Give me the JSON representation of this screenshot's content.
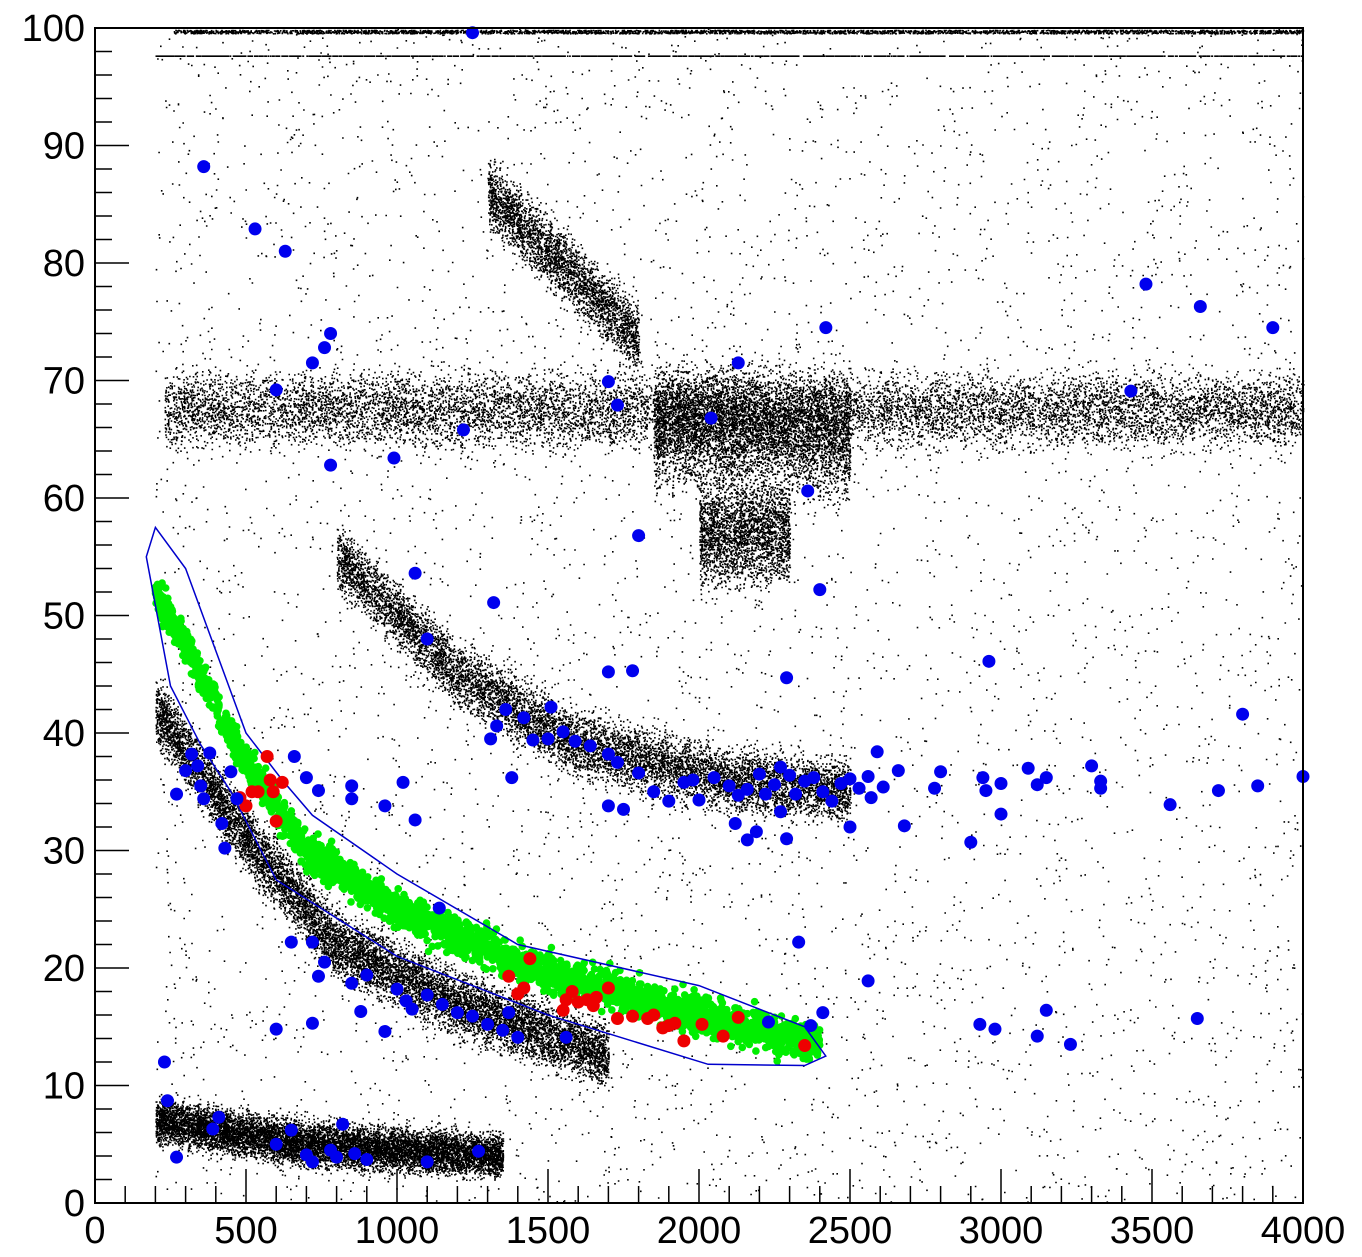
{
  "chart_data": {
    "type": "scatter",
    "title": "",
    "xlabel": "",
    "ylabel": "",
    "xlim": [
      0,
      4000
    ],
    "ylim": [
      0,
      100
    ],
    "x_ticks": [
      "0",
      "500",
      "1000",
      "1500",
      "2000",
      "2500",
      "3000",
      "3500",
      "4000"
    ],
    "y_ticks": [
      "0",
      "10",
      "20",
      "30",
      "40",
      "50",
      "60",
      "70",
      "80",
      "90",
      "100"
    ],
    "grid": false,
    "legend": "none",
    "cut_polygon": {
      "color": "#0000cc",
      "points": [
        [
          170,
          55
        ],
        [
          200,
          57.5
        ],
        [
          300,
          54
        ],
        [
          400,
          47
        ],
        [
          500,
          40
        ],
        [
          620,
          36
        ],
        [
          720,
          33
        ],
        [
          1000,
          28
        ],
        [
          1400,
          22
        ],
        [
          2000,
          18.5
        ],
        [
          2350,
          15
        ],
        [
          2420,
          12.5
        ],
        [
          2350,
          11.7
        ],
        [
          2030,
          11.8
        ],
        [
          1500,
          16
        ],
        [
          1000,
          21
        ],
        [
          600,
          27.5
        ],
        [
          450,
          35
        ],
        [
          350,
          39
        ],
        [
          250,
          44
        ],
        [
          170,
          55
        ]
      ]
    },
    "background_bands": [
      {
        "name": "horizontal band",
        "color": "#000000",
        "x_range": [
          230,
          4000
        ],
        "y_center": 67.5,
        "y_spread": 2.2
      },
      {
        "name": "lower curve",
        "color": "#000000",
        "x_range": [
          200,
          1700
        ],
        "y_at_x": [
          [
            200,
            42
          ],
          [
            500,
            31
          ],
          [
            800,
            22
          ],
          [
            1200,
            17
          ],
          [
            1700,
            12.5
          ]
        ]
      },
      {
        "name": "bottom band",
        "color": "#000000",
        "x_range": [
          200,
          1350
        ],
        "y_at_x": [
          [
            200,
            7
          ],
          [
            700,
            5
          ],
          [
            1350,
            4
          ]
        ]
      },
      {
        "name": "middle curve",
        "color": "#000000",
        "x_range": [
          800,
          2500
        ],
        "y_at_x": [
          [
            800,
            55
          ],
          [
            1200,
            45
          ],
          [
            1600,
            39
          ],
          [
            2100,
            36
          ],
          [
            2500,
            35
          ]
        ]
      },
      {
        "name": "blob",
        "color": "#000000",
        "x_range": [
          1900,
          2400
        ],
        "y_center": 66
      }
    ],
    "green_points": {
      "color": "#00ee00",
      "curve": [
        [
          200,
          52
        ],
        [
          350,
          45
        ],
        [
          500,
          37.5
        ],
        [
          700,
          30
        ],
        [
          1000,
          25
        ],
        [
          1400,
          20.5
        ],
        [
          2000,
          16
        ],
        [
          2400,
          13.5
        ]
      ]
    },
    "red_points": {
      "color": "#ee0000",
      "values": [
        [
          480,
          34.5
        ],
        [
          500,
          33.8
        ],
        [
          520,
          35
        ],
        [
          540,
          35
        ],
        [
          570,
          38
        ],
        [
          580,
          36
        ],
        [
          590,
          35
        ],
        [
          600,
          32.5
        ],
        [
          620,
          35.8
        ],
        [
          1370,
          19.3
        ],
        [
          1400,
          17.8
        ],
        [
          1420,
          18.3
        ],
        [
          1440,
          20.8
        ],
        [
          1550,
          16.4
        ],
        [
          1560,
          17.3
        ],
        [
          1580,
          18
        ],
        [
          1600,
          17.1
        ],
        [
          1630,
          17.3
        ],
        [
          1650,
          16.8
        ],
        [
          1660,
          17.5
        ],
        [
          1700,
          18.3
        ],
        [
          1730,
          15.7
        ],
        [
          1780,
          15.9
        ],
        [
          1830,
          15.7
        ],
        [
          1850,
          16
        ],
        [
          1880,
          14.9
        ],
        [
          1900,
          15.1
        ],
        [
          1920,
          15.3
        ],
        [
          1950,
          13.8
        ],
        [
          2010,
          15.2
        ],
        [
          2080,
          14.2
        ],
        [
          2130,
          15.8
        ],
        [
          2350,
          13.4
        ]
      ]
    },
    "blue_points": {
      "color": "#0000ee",
      "values": [
        [
          360,
          88.2
        ],
        [
          530,
          82.9
        ],
        [
          630,
          81
        ],
        [
          780,
          74
        ],
        [
          760,
          72.8
        ],
        [
          720,
          71.5
        ],
        [
          600,
          69.2
        ],
        [
          1220,
          65.8
        ],
        [
          990,
          63.4
        ],
        [
          780,
          62.8
        ],
        [
          1250,
          99.6
        ],
        [
          1700,
          69.9
        ],
        [
          1730,
          67.9
        ],
        [
          2130,
          71.5
        ],
        [
          2040,
          66.8
        ],
        [
          2420,
          74.5
        ],
        [
          2360,
          60.6
        ],
        [
          1800,
          56.8
        ],
        [
          2400,
          52.2
        ],
        [
          1060,
          53.6
        ],
        [
          1100,
          48
        ],
        [
          1320,
          51.1
        ],
        [
          1700,
          45.2
        ],
        [
          1780,
          45.3
        ],
        [
          2290,
          44.7
        ],
        [
          2960,
          46.1
        ],
        [
          3480,
          78.2
        ],
        [
          3660,
          76.3
        ],
        [
          3900,
          74.5
        ],
        [
          3430,
          69.1
        ],
        [
          3800,
          41.6
        ],
        [
          4000,
          36.3
        ],
        [
          230,
          12
        ],
        [
          240,
          8.7
        ],
        [
          270,
          3.9
        ],
        [
          390,
          6.3
        ],
        [
          410,
          7.3
        ],
        [
          600,
          5
        ],
        [
          650,
          6.2
        ],
        [
          700,
          4.1
        ],
        [
          720,
          3.5
        ],
        [
          780,
          4.5
        ],
        [
          800,
          3.9
        ],
        [
          820,
          6.7
        ],
        [
          860,
          4.2
        ],
        [
          900,
          3.7
        ],
        [
          1100,
          3.5
        ],
        [
          1270,
          4.4
        ],
        [
          1140,
          25.1
        ],
        [
          650,
          22.2
        ],
        [
          720,
          22.2
        ],
        [
          760,
          20.5
        ],
        [
          740,
          19.3
        ],
        [
          850,
          18.7
        ],
        [
          900,
          19.4
        ],
        [
          1000,
          18.2
        ],
        [
          1030,
          17.2
        ],
        [
          1050,
          16.5
        ],
        [
          1100,
          17.7
        ],
        [
          1150,
          16.9
        ],
        [
          1200,
          16.2
        ],
        [
          1250,
          15.9
        ],
        [
          1300,
          15.2
        ],
        [
          1350,
          14.7
        ],
        [
          1370,
          16.2
        ],
        [
          1400,
          14.1
        ],
        [
          1560,
          14.1
        ],
        [
          600,
          14.8
        ],
        [
          720,
          15.3
        ],
        [
          880,
          16.3
        ],
        [
          960,
          14.6
        ],
        [
          2230,
          15.4
        ],
        [
          2370,
          15.1
        ],
        [
          2410,
          16.2
        ],
        [
          2330,
          22.2
        ],
        [
          2560,
          18.9
        ],
        [
          2930,
          15.2
        ],
        [
          2980,
          14.8
        ],
        [
          3120,
          14.2
        ],
        [
          3150,
          16.4
        ],
        [
          3230,
          13.5
        ],
        [
          3650,
          15.7
        ],
        [
          270,
          34.8
        ],
        [
          300,
          36.8
        ],
        [
          320,
          38.2
        ],
        [
          340,
          37.2
        ],
        [
          350,
          35.5
        ],
        [
          360,
          34.4
        ],
        [
          380,
          38.3
        ],
        [
          420,
          32.3
        ],
        [
          430,
          30.2
        ],
        [
          450,
          36.7
        ],
        [
          470,
          34.4
        ],
        [
          660,
          38
        ],
        [
          700,
          36.2
        ],
        [
          740,
          35.1
        ],
        [
          850,
          35.5
        ],
        [
          850,
          34.4
        ],
        [
          960,
          33.8
        ],
        [
          1020,
          35.8
        ],
        [
          1060,
          32.6
        ],
        [
          1310,
          39.5
        ],
        [
          1330,
          40.6
        ],
        [
          1360,
          42
        ],
        [
          1380,
          36.2
        ],
        [
          1420,
          41.3
        ],
        [
          1450,
          39.4
        ],
        [
          1500,
          39.5
        ],
        [
          1510,
          42.2
        ],
        [
          1550,
          40.1
        ],
        [
          1590,
          39.3
        ],
        [
          1640,
          38.9
        ],
        [
          1700,
          38.2
        ],
        [
          1730,
          37.5
        ],
        [
          1700,
          33.8
        ],
        [
          1750,
          33.5
        ],
        [
          1800,
          36.6
        ],
        [
          1850,
          35
        ],
        [
          1900,
          34.2
        ],
        [
          1950,
          35.8
        ],
        [
          1980,
          36
        ],
        [
          2000,
          34.3
        ],
        [
          2050,
          36.2
        ],
        [
          2100,
          35.5
        ],
        [
          2130,
          34.7
        ],
        [
          2160,
          35.2
        ],
        [
          2200,
          36.5
        ],
        [
          2220,
          34.8
        ],
        [
          2250,
          35.6
        ],
        [
          2270,
          37.1
        ],
        [
          2300,
          36.4
        ],
        [
          2320,
          34.8
        ],
        [
          2350,
          35.9
        ],
        [
          2380,
          36.2
        ],
        [
          2410,
          35
        ],
        [
          2440,
          34.2
        ],
        [
          2470,
          35.7
        ],
        [
          2500,
          36.1
        ],
        [
          2530,
          35.3
        ],
        [
          2560,
          36.3
        ],
        [
          2590,
          38.4
        ],
        [
          2610,
          35.4
        ],
        [
          2660,
          36.8
        ],
        [
          2290,
          31
        ],
        [
          2160,
          30.9
        ],
        [
          2190,
          31.6
        ],
        [
          2270,
          33.3
        ],
        [
          2120,
          32.3
        ],
        [
          2500,
          32
        ],
        [
          2570,
          34.5
        ],
        [
          2680,
          32.1
        ],
        [
          2780,
          35.3
        ],
        [
          2800,
          36.7
        ],
        [
          2900,
          30.7
        ],
        [
          2940,
          36.2
        ],
        [
          2950,
          35.1
        ],
        [
          3000,
          35.7
        ],
        [
          3000,
          33.1
        ],
        [
          3090,
          37
        ],
        [
          3120,
          35.6
        ],
        [
          3150,
          36.2
        ],
        [
          3300,
          37.2
        ],
        [
          3330,
          35.3
        ],
        [
          3330,
          35.9
        ],
        [
          3560,
          33.9
        ],
        [
          3720,
          35.1
        ],
        [
          3850,
          35.5
        ]
      ]
    }
  }
}
